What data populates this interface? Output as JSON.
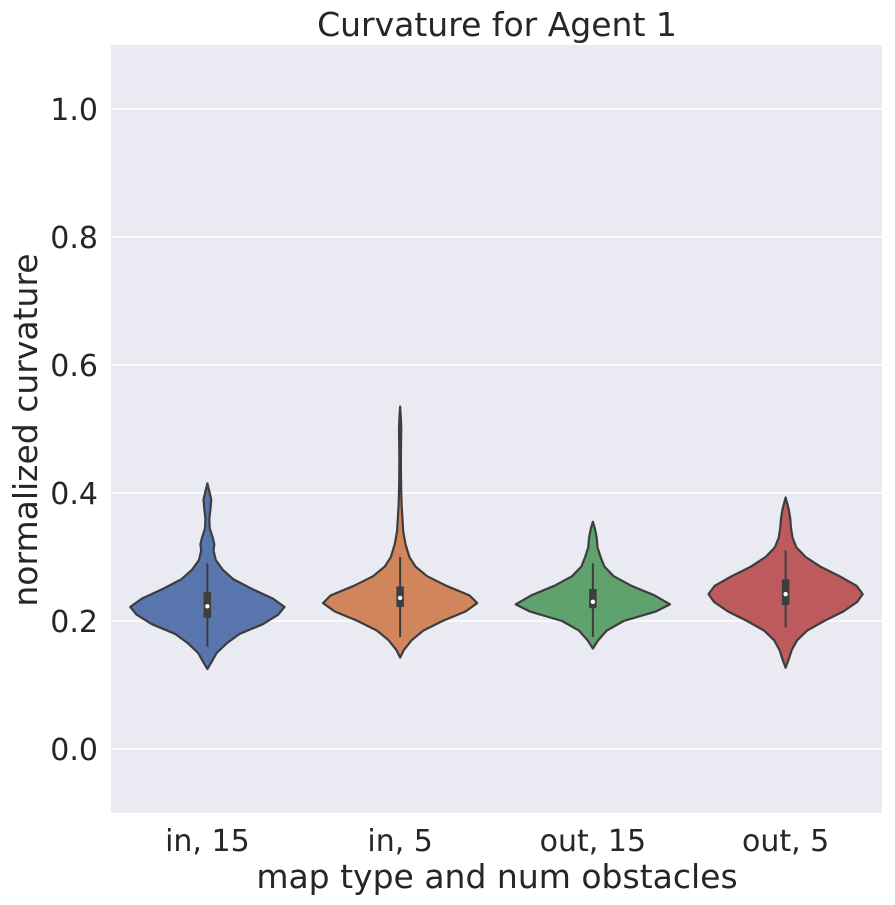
{
  "chart_data": {
    "type": "violin",
    "title": "Curvature for Agent 1",
    "xlabel": "map type and num obstacles",
    "ylabel": "normalized curvature",
    "categories": [
      "in, 15",
      "in, 5",
      "out, 15",
      "out, 5"
    ],
    "ylim": [
      -0.1,
      1.1
    ],
    "yticks": [
      0.0,
      0.2,
      0.4,
      0.6,
      0.8,
      1.0
    ],
    "ytick_labels": [
      "0.0",
      "0.2",
      "0.4",
      "0.6",
      "0.8",
      "1.0"
    ],
    "grid": true,
    "colors": {
      "background": "#eaeaf2",
      "grid": "#ffffff",
      "outline": "#3d3d3d",
      "series": [
        "#5875ad",
        "#d0855c",
        "#5fa26d",
        "#bd5a5d"
      ]
    },
    "violins": [
      {
        "category": "in, 15",
        "min": 0.125,
        "max": 0.415,
        "whisker_low": 0.16,
        "whisker_high": 0.29,
        "q1": 0.205,
        "median": 0.223,
        "q3": 0.245,
        "density": [
          [
            0.125,
            0
          ],
          [
            0.135,
            0.05
          ],
          [
            0.15,
            0.12
          ],
          [
            0.165,
            0.25
          ],
          [
            0.18,
            0.42
          ],
          [
            0.195,
            0.72
          ],
          [
            0.21,
            0.92
          ],
          [
            0.222,
            1.0
          ],
          [
            0.235,
            0.85
          ],
          [
            0.25,
            0.58
          ],
          [
            0.265,
            0.34
          ],
          [
            0.28,
            0.2
          ],
          [
            0.295,
            0.11
          ],
          [
            0.31,
            0.08
          ],
          [
            0.32,
            0.09
          ],
          [
            0.33,
            0.07
          ],
          [
            0.345,
            0.03
          ],
          [
            0.36,
            0.025
          ],
          [
            0.375,
            0.04
          ],
          [
            0.39,
            0.05
          ],
          [
            0.405,
            0.02
          ],
          [
            0.415,
            0
          ]
        ]
      },
      {
        "category": "in, 5",
        "min": 0.143,
        "max": 0.535,
        "whisker_low": 0.175,
        "whisker_high": 0.3,
        "q1": 0.222,
        "median": 0.236,
        "q3": 0.254,
        "density": [
          [
            0.143,
            0
          ],
          [
            0.155,
            0.05
          ],
          [
            0.17,
            0.15
          ],
          [
            0.185,
            0.3
          ],
          [
            0.2,
            0.55
          ],
          [
            0.215,
            0.85
          ],
          [
            0.228,
            1.0
          ],
          [
            0.24,
            0.9
          ],
          [
            0.255,
            0.6
          ],
          [
            0.27,
            0.35
          ],
          [
            0.285,
            0.2
          ],
          [
            0.3,
            0.12
          ],
          [
            0.32,
            0.07
          ],
          [
            0.34,
            0.04
          ],
          [
            0.36,
            0.03
          ],
          [
            0.38,
            0.02
          ],
          [
            0.4,
            0.015
          ],
          [
            0.42,
            0.012
          ],
          [
            0.44,
            0.01
          ],
          [
            0.46,
            0.01
          ],
          [
            0.48,
            0.012
          ],
          [
            0.5,
            0.015
          ],
          [
            0.515,
            0.01
          ],
          [
            0.535,
            0
          ]
        ]
      },
      {
        "category": "out, 15",
        "min": 0.157,
        "max": 0.355,
        "whisker_low": 0.175,
        "whisker_high": 0.29,
        "q1": 0.22,
        "median": 0.23,
        "q3": 0.25,
        "density": [
          [
            0.157,
            0
          ],
          [
            0.17,
            0.07
          ],
          [
            0.185,
            0.18
          ],
          [
            0.2,
            0.4
          ],
          [
            0.215,
            0.82
          ],
          [
            0.226,
            1.0
          ],
          [
            0.24,
            0.8
          ],
          [
            0.255,
            0.5
          ],
          [
            0.27,
            0.27
          ],
          [
            0.285,
            0.15
          ],
          [
            0.3,
            0.1
          ],
          [
            0.315,
            0.06
          ],
          [
            0.33,
            0.05
          ],
          [
            0.345,
            0.025
          ],
          [
            0.355,
            0
          ]
        ]
      },
      {
        "category": "out, 5",
        "min": 0.127,
        "max": 0.393,
        "whisker_low": 0.19,
        "whisker_high": 0.31,
        "q1": 0.225,
        "median": 0.242,
        "q3": 0.265,
        "density": [
          [
            0.127,
            0
          ],
          [
            0.14,
            0.04
          ],
          [
            0.155,
            0.08
          ],
          [
            0.17,
            0.15
          ],
          [
            0.185,
            0.28
          ],
          [
            0.2,
            0.5
          ],
          [
            0.215,
            0.75
          ],
          [
            0.23,
            0.93
          ],
          [
            0.242,
            1.0
          ],
          [
            0.255,
            0.92
          ],
          [
            0.27,
            0.7
          ],
          [
            0.285,
            0.45
          ],
          [
            0.3,
            0.26
          ],
          [
            0.315,
            0.14
          ],
          [
            0.33,
            0.09
          ],
          [
            0.345,
            0.07
          ],
          [
            0.36,
            0.06
          ],
          [
            0.375,
            0.04
          ],
          [
            0.393,
            0
          ]
        ]
      }
    ]
  }
}
